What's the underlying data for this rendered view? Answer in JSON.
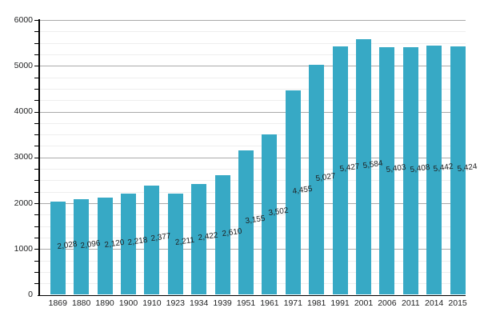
{
  "chart_data": {
    "type": "bar",
    "title": "",
    "xlabel": "",
    "ylabel": "",
    "categories": [
      "1869",
      "1880",
      "1890",
      "1900",
      "1910",
      "1923",
      "1934",
      "1939",
      "1951",
      "1961",
      "1971",
      "1981",
      "1991",
      "2001",
      "2006",
      "2011",
      "2014",
      "2015"
    ],
    "values": [
      2028,
      2096,
      2120,
      2218,
      2377,
      2211,
      2422,
      2610,
      3155,
      3502,
      4455,
      5027,
      5427,
      5584,
      5403,
      5408,
      5442,
      5424
    ],
    "value_labels": [
      "2,028",
      "2,096",
      "2,120",
      "2,218",
      "2,377",
      "2,211",
      "2,422",
      "2,610",
      "3,155",
      "3,502",
      "4,455",
      "5,027",
      "5,427",
      "5,584",
      "5,403",
      "5,408",
      "5,442",
      "5,424"
    ],
    "y_tick_labels": [
      "0",
      "1000",
      "2000",
      "3000",
      "4000",
      "5000",
      "6000"
    ],
    "ylim": [
      0,
      6000
    ],
    "y_major_step": 1000,
    "y_minor_step": 250,
    "grid": true,
    "legend": false,
    "colors": {
      "bar": "#37a9c5",
      "grid_major": "#aaaaaa",
      "grid_minor": "#eeeeee",
      "axis": "#000000",
      "text": "#202122",
      "background": "#ffffff"
    }
  }
}
